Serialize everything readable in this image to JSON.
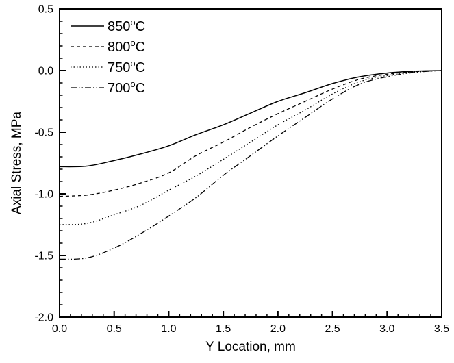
{
  "figure": {
    "background": "#ffffff",
    "line_color": "#000000"
  },
  "chart_data": {
    "type": "line",
    "title": "",
    "xlabel": "Y Location, mm",
    "ylabel": "Axial Stress, MPa",
    "xlim": [
      0.0,
      3.5
    ],
    "ylim": [
      -2.0,
      0.5
    ],
    "x_major_step": 0.5,
    "y_major_step": 0.5,
    "minor_step": 0.1,
    "x_tick_labels": [
      "0.0",
      "0.5",
      "1.0",
      "1.5",
      "2.0",
      "2.5",
      "3.0",
      "3.5"
    ],
    "y_tick_labels": [
      "0.5",
      "0.0",
      "-0.5",
      "-1.0",
      "-1.5",
      "-2.0"
    ],
    "grid": false,
    "legend_position": "top-left",
    "x": [
      0.0,
      0.25,
      0.5,
      0.75,
      1.0,
      1.25,
      1.5,
      1.75,
      2.0,
      2.25,
      2.5,
      2.75,
      3.0,
      3.25,
      3.5
    ],
    "series": [
      {
        "name": "850°C",
        "linestyle": "solid",
        "values": [
          -0.78,
          -0.775,
          -0.73,
          -0.675,
          -0.61,
          -0.52,
          -0.44,
          -0.345,
          -0.25,
          -0.18,
          -0.105,
          -0.05,
          -0.02,
          -0.005,
          0.0
        ]
      },
      {
        "name": "800°C",
        "linestyle": "dash",
        "values": [
          -1.02,
          -1.01,
          -0.97,
          -0.91,
          -0.83,
          -0.69,
          -0.58,
          -0.46,
          -0.35,
          -0.25,
          -0.15,
          -0.07,
          -0.03,
          -0.01,
          0.0
        ]
      },
      {
        "name": "750°C",
        "linestyle": "dot",
        "values": [
          -1.25,
          -1.24,
          -1.17,
          -1.09,
          -0.97,
          -0.855,
          -0.72,
          -0.58,
          -0.44,
          -0.32,
          -0.19,
          -0.09,
          -0.04,
          -0.01,
          0.0
        ]
      },
      {
        "name": "700°C",
        "linestyle": "dash-dot-dot",
        "values": [
          -1.53,
          -1.52,
          -1.44,
          -1.32,
          -1.18,
          -1.03,
          -0.85,
          -0.69,
          -0.53,
          -0.38,
          -0.23,
          -0.11,
          -0.05,
          -0.015,
          0.0
        ]
      }
    ]
  }
}
